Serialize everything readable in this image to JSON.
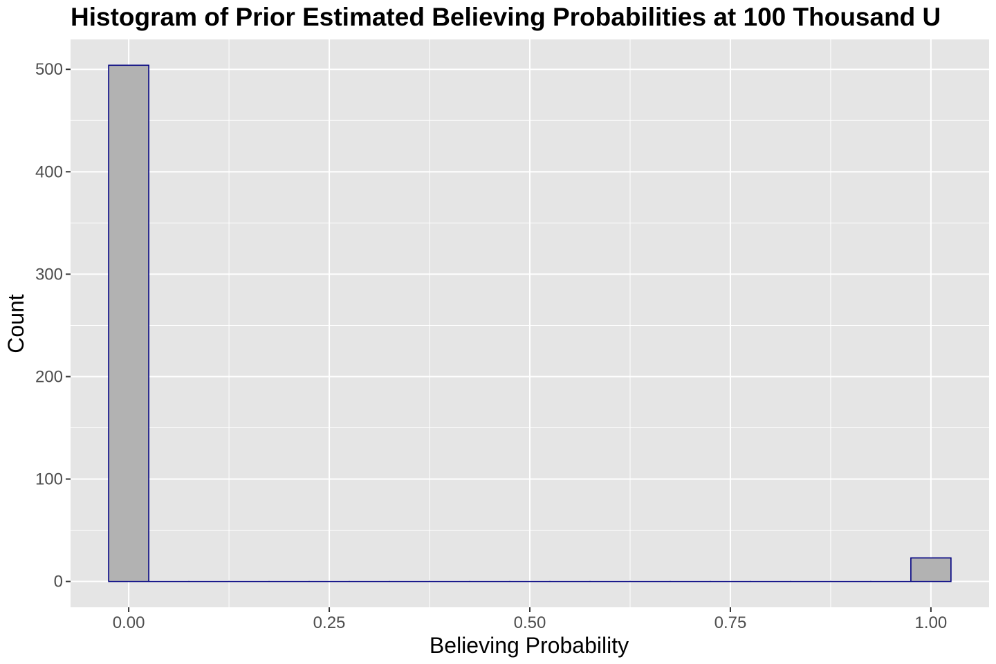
{
  "chart_data": {
    "type": "bar",
    "title": "Histogram of Prior Estimated Believing Probabilities at 100 Thousand U",
    "xlabel": "Believing Probability",
    "ylabel": "Count",
    "x_ticks": [
      "0.00",
      "0.25",
      "0.50",
      "0.75",
      "1.00"
    ],
    "x_tick_values": [
      0,
      0.25,
      0.5,
      0.75,
      1.0
    ],
    "y_ticks": [
      "0",
      "100",
      "200",
      "300",
      "400",
      "500"
    ],
    "y_tick_values": [
      0,
      100,
      200,
      300,
      400,
      500
    ],
    "xlim": [
      -0.0725,
      1.0725
    ],
    "ylim": [
      -25.2,
      529.2
    ],
    "binwidth": 0.05,
    "bins": [
      {
        "center": 0.0,
        "count": 504
      },
      {
        "center": 0.05,
        "count": 0
      },
      {
        "center": 0.1,
        "count": 0
      },
      {
        "center": 0.15,
        "count": 0
      },
      {
        "center": 0.2,
        "count": 0
      },
      {
        "center": 0.25,
        "count": 0
      },
      {
        "center": 0.3,
        "count": 0
      },
      {
        "center": 0.35,
        "count": 0
      },
      {
        "center": 0.4,
        "count": 0
      },
      {
        "center": 0.45,
        "count": 0
      },
      {
        "center": 0.5,
        "count": 0
      },
      {
        "center": 0.55,
        "count": 0
      },
      {
        "center": 0.6,
        "count": 0
      },
      {
        "center": 0.65,
        "count": 0
      },
      {
        "center": 0.7,
        "count": 0
      },
      {
        "center": 0.75,
        "count": 0
      },
      {
        "center": 0.8,
        "count": 0
      },
      {
        "center": 0.85,
        "count": 0
      },
      {
        "center": 0.9,
        "count": 0
      },
      {
        "center": 0.95,
        "count": 0
      },
      {
        "center": 1.0,
        "count": 23
      }
    ],
    "grid": true,
    "legend": "none",
    "colors": {
      "panel": "#e5e5e5",
      "grid": "#ffffff",
      "bar_fill": "#b2b2b2",
      "bar_outline": "#000080"
    }
  }
}
